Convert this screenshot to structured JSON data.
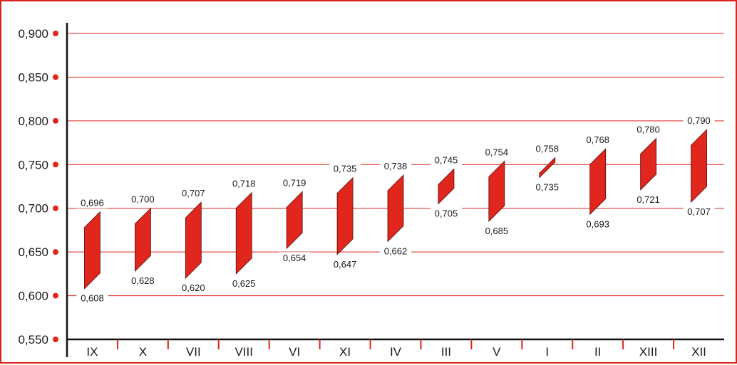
{
  "chart_data": {
    "type": "range-bar",
    "title": "",
    "xlabel": "",
    "ylabel": "",
    "ylim": [
      0.55,
      0.9
    ],
    "yticks": [
      "0,550",
      "0,600",
      "0,650",
      "0,700",
      "0,750",
      "0,800",
      "0,850",
      "0,900"
    ],
    "ytick_values": [
      0.55,
      0.6,
      0.65,
      0.7,
      0.75,
      0.8,
      0.85,
      0.9
    ],
    "grid": true,
    "categories": [
      "IX",
      "X",
      "VII",
      "VIII",
      "VI",
      "XI",
      "IV",
      "III",
      "V",
      "I",
      "II",
      "XIII",
      "XII"
    ],
    "lows": [
      0.608,
      0.628,
      0.62,
      0.625,
      0.654,
      0.647,
      0.662,
      0.705,
      0.685,
      0.735,
      0.693,
      0.721,
      0.707
    ],
    "highs": [
      0.696,
      0.7,
      0.707,
      0.718,
      0.719,
      0.735,
      0.738,
      0.745,
      0.754,
      0.758,
      0.768,
      0.78,
      0.79
    ],
    "low_labels": [
      "0,608",
      "0,628",
      "0,620",
      "0,625",
      "0,654",
      "0,647",
      "0,662",
      "0,705",
      "0,685",
      "0,735",
      "0,693",
      "0,721",
      "0,707"
    ],
    "high_labels": [
      "0,696",
      "0,700",
      "0,707",
      "0,718",
      "0,719",
      "0,735",
      "0,738",
      "0,745",
      "0,754",
      "0,758",
      "0,768",
      "0,780",
      "0,790"
    ],
    "colors": {
      "bar": "#e0261d",
      "bar_edge": "#5a0a06",
      "grid": "#d9261c",
      "tick_dot": "#e0261d",
      "axis": "#111111",
      "frame": "#d9261c"
    }
  }
}
